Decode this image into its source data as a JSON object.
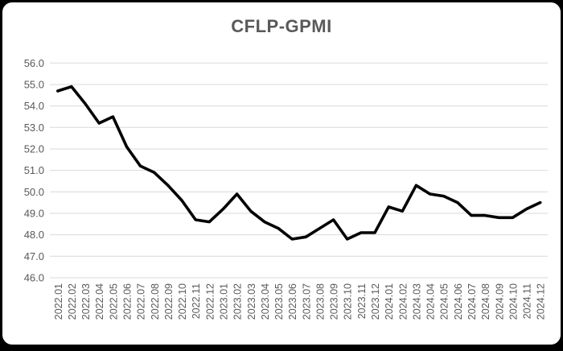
{
  "page": {
    "background_color": "#000000",
    "card_background_color": "#ffffff"
  },
  "chart_data": {
    "type": "line",
    "title": "CFLP-GPMI",
    "xlabel": "",
    "ylabel": "",
    "ylim": [
      46.0,
      56.0
    ],
    "ytick_step": 1.0,
    "ytick_labels": [
      "56.0",
      "55.0",
      "54.0",
      "53.0",
      "52.0",
      "51.0",
      "50.0",
      "49.0",
      "48.0",
      "47.0",
      "46.0"
    ],
    "grid": "horizontal",
    "legend_position": "none",
    "x_label_rotation_deg": -90,
    "categories": [
      "2022.01",
      "2022.02",
      "2022.03",
      "2022.04",
      "2022.05",
      "2022.06",
      "2022.07",
      "2022.08",
      "2022.09",
      "2022.10",
      "2022.11",
      "2022.12",
      "2023.01",
      "2023.02",
      "2023.03",
      "2023.04",
      "2023.05",
      "2023.06",
      "2023.07",
      "2023.08",
      "2023.09",
      "2023.10",
      "2023.11",
      "2023.12",
      "2024.01",
      "2024.02",
      "2024.03",
      "2024.04",
      "2024.05",
      "2024.06",
      "2024.07",
      "2024.08",
      "2024.09",
      "2024.10",
      "2024.11",
      "2024.12"
    ],
    "series": [
      {
        "name": "CFLP-GPMI",
        "color": "#000000",
        "values": [
          54.7,
          54.9,
          54.1,
          53.2,
          53.5,
          52.1,
          51.2,
          50.9,
          50.3,
          49.6,
          48.7,
          48.6,
          49.2,
          49.9,
          49.1,
          48.6,
          48.3,
          47.8,
          47.9,
          48.3,
          48.7,
          47.8,
          48.1,
          48.1,
          49.3,
          49.1,
          50.3,
          49.9,
          49.8,
          49.5,
          48.9,
          48.9,
          48.8,
          48.8,
          49.2,
          49.5
        ]
      }
    ],
    "colors": {
      "title_text": "#595959",
      "axis_label_text": "#595959",
      "gridline": "#d9d9d9",
      "line": "#000000"
    }
  }
}
